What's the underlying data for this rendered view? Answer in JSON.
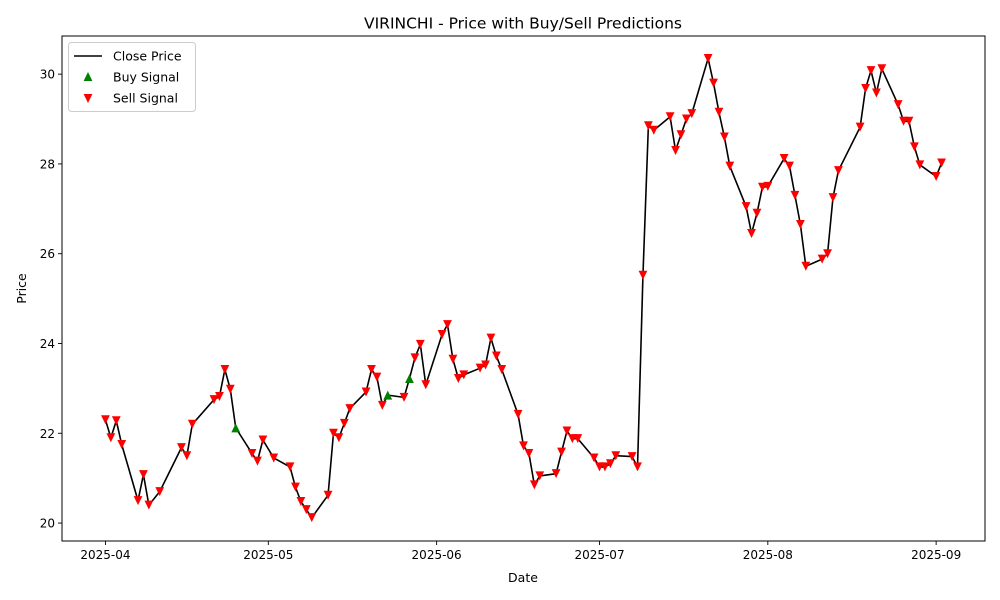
{
  "chart_data": {
    "type": "line",
    "title": "VIRINCHI - Price with Buy/Sell Predictions",
    "xlabel": "Date",
    "ylabel": "Price",
    "xlim": [
      "2025-03-24",
      "2025-09-10"
    ],
    "ylim": [
      19.6,
      30.85
    ],
    "x_ticks": [
      "2025-04",
      "2025-05",
      "2025-06",
      "2025-07",
      "2025-08",
      "2025-09"
    ],
    "x_tick_dates": [
      "2025-04-01",
      "2025-05-01",
      "2025-06-01",
      "2025-07-01",
      "2025-08-01",
      "2025-09-01"
    ],
    "y_ticks": [
      20,
      22,
      24,
      26,
      28,
      30
    ],
    "grid": false,
    "legend_placement": "upper-left",
    "legend": [
      "Close Price",
      "Buy Signal",
      "Sell Signal"
    ],
    "colors": {
      "line": "#000000",
      "buy": "#008000",
      "sell": "#ff0000"
    },
    "series": [
      {
        "name": "Close Price",
        "points": [
          [
            "2025-04-01",
            22.3
          ],
          [
            "2025-04-02",
            21.9
          ],
          [
            "2025-04-03",
            22.28
          ],
          [
            "2025-04-04",
            21.75
          ],
          [
            "2025-04-07",
            20.5
          ],
          [
            "2025-04-08",
            21.08
          ],
          [
            "2025-04-09",
            20.4
          ],
          [
            "2025-04-11",
            20.7
          ],
          [
            "2025-04-15",
            21.68
          ],
          [
            "2025-04-16",
            21.5
          ],
          [
            "2025-04-17",
            22.2
          ],
          [
            "2025-04-21",
            22.75
          ],
          [
            "2025-04-22",
            22.82
          ],
          [
            "2025-04-23",
            23.42
          ],
          [
            "2025-04-24",
            22.98
          ],
          [
            "2025-04-25",
            22.12
          ],
          [
            "2025-04-28",
            21.55
          ],
          [
            "2025-04-29",
            21.38
          ],
          [
            "2025-04-30",
            21.85
          ],
          [
            "2025-05-02",
            21.45
          ],
          [
            "2025-05-05",
            21.25
          ],
          [
            "2025-05-06",
            20.8
          ],
          [
            "2025-05-07",
            20.48
          ],
          [
            "2025-05-08",
            20.3
          ],
          [
            "2025-05-09",
            20.12
          ],
          [
            "2025-05-12",
            20.62
          ],
          [
            "2025-05-13",
            22.0
          ],
          [
            "2025-05-14",
            21.9
          ],
          [
            "2025-05-15",
            22.22
          ],
          [
            "2025-05-16",
            22.55
          ],
          [
            "2025-05-19",
            22.92
          ],
          [
            "2025-05-20",
            23.42
          ],
          [
            "2025-05-21",
            23.25
          ],
          [
            "2025-05-22",
            22.62
          ],
          [
            "2025-05-23",
            22.85
          ],
          [
            "2025-05-26",
            22.8
          ],
          [
            "2025-05-27",
            23.22
          ],
          [
            "2025-05-28",
            23.68
          ],
          [
            "2025-05-29",
            23.98
          ],
          [
            "2025-05-30",
            23.08
          ],
          [
            "2025-06-02",
            24.2
          ],
          [
            "2025-06-03",
            24.42
          ],
          [
            "2025-06-04",
            23.65
          ],
          [
            "2025-06-05",
            23.22
          ],
          [
            "2025-06-06",
            23.3
          ],
          [
            "2025-06-09",
            23.45
          ],
          [
            "2025-06-10",
            23.52
          ],
          [
            "2025-06-11",
            24.12
          ],
          [
            "2025-06-12",
            23.72
          ],
          [
            "2025-06-13",
            23.42
          ],
          [
            "2025-06-16",
            22.42
          ],
          [
            "2025-06-17",
            21.72
          ],
          [
            "2025-06-18",
            21.55
          ],
          [
            "2025-06-19",
            20.85
          ],
          [
            "2025-06-20",
            21.05
          ],
          [
            "2025-06-23",
            21.1
          ],
          [
            "2025-06-24",
            21.58
          ],
          [
            "2025-06-25",
            22.05
          ],
          [
            "2025-06-26",
            21.88
          ],
          [
            "2025-06-27",
            21.88
          ],
          [
            "2025-06-30",
            21.45
          ],
          [
            "2025-07-01",
            21.25
          ],
          [
            "2025-07-02",
            21.25
          ],
          [
            "2025-07-03",
            21.32
          ],
          [
            "2025-07-04",
            21.5
          ],
          [
            "2025-07-07",
            21.48
          ],
          [
            "2025-07-08",
            21.25
          ],
          [
            "2025-07-09",
            25.52
          ],
          [
            "2025-07-10",
            28.85
          ],
          [
            "2025-07-11",
            28.75
          ],
          [
            "2025-07-14",
            29.05
          ],
          [
            "2025-07-15",
            28.3
          ],
          [
            "2025-07-16",
            28.65
          ],
          [
            "2025-07-17",
            29.0
          ],
          [
            "2025-07-18",
            29.12
          ],
          [
            "2025-07-21",
            30.35
          ],
          [
            "2025-07-22",
            29.8
          ],
          [
            "2025-07-23",
            29.15
          ],
          [
            "2025-07-24",
            28.6
          ],
          [
            "2025-07-25",
            27.95
          ],
          [
            "2025-07-28",
            27.05
          ],
          [
            "2025-07-29",
            26.45
          ],
          [
            "2025-07-30",
            26.9
          ],
          [
            "2025-07-31",
            27.48
          ],
          [
            "2025-08-01",
            27.5
          ],
          [
            "2025-08-04",
            28.12
          ],
          [
            "2025-08-05",
            27.95
          ],
          [
            "2025-08-06",
            27.3
          ],
          [
            "2025-08-07",
            26.65
          ],
          [
            "2025-08-08",
            25.72
          ],
          [
            "2025-08-11",
            25.88
          ],
          [
            "2025-08-12",
            26.0
          ],
          [
            "2025-08-13",
            27.25
          ],
          [
            "2025-08-14",
            27.85
          ],
          [
            "2025-08-18",
            28.82
          ],
          [
            "2025-08-19",
            29.68
          ],
          [
            "2025-08-20",
            30.08
          ],
          [
            "2025-08-21",
            29.58
          ],
          [
            "2025-08-22",
            30.12
          ],
          [
            "2025-08-25",
            29.32
          ],
          [
            "2025-08-26",
            28.95
          ],
          [
            "2025-08-27",
            28.95
          ],
          [
            "2025-08-28",
            28.38
          ],
          [
            "2025-08-29",
            27.98
          ],
          [
            "2025-09-01",
            27.72
          ],
          [
            "2025-09-02",
            28.02
          ]
        ]
      },
      {
        "name": "Buy Signal",
        "marker": "triangle-up",
        "points": [
          [
            "2025-04-25",
            22.12
          ],
          [
            "2025-05-23",
            22.85
          ],
          [
            "2025-05-27",
            23.22
          ]
        ]
      },
      {
        "name": "Sell Signal",
        "marker": "triangle-down",
        "points": [
          [
            "2025-04-01",
            22.3
          ],
          [
            "2025-04-02",
            21.9
          ],
          [
            "2025-04-03",
            22.28
          ],
          [
            "2025-04-04",
            21.75
          ],
          [
            "2025-04-07",
            20.5
          ],
          [
            "2025-04-08",
            21.08
          ],
          [
            "2025-04-09",
            20.4
          ],
          [
            "2025-04-11",
            20.7
          ],
          [
            "2025-04-15",
            21.68
          ],
          [
            "2025-04-16",
            21.5
          ],
          [
            "2025-04-17",
            22.2
          ],
          [
            "2025-04-21",
            22.75
          ],
          [
            "2025-04-22",
            22.82
          ],
          [
            "2025-04-23",
            23.42
          ],
          [
            "2025-04-24",
            22.98
          ],
          [
            "2025-04-28",
            21.55
          ],
          [
            "2025-04-29",
            21.38
          ],
          [
            "2025-04-30",
            21.85
          ],
          [
            "2025-05-02",
            21.45
          ],
          [
            "2025-05-05",
            21.25
          ],
          [
            "2025-05-06",
            20.8
          ],
          [
            "2025-05-07",
            20.48
          ],
          [
            "2025-05-08",
            20.3
          ],
          [
            "2025-05-09",
            20.12
          ],
          [
            "2025-05-12",
            20.62
          ],
          [
            "2025-05-13",
            22.0
          ],
          [
            "2025-05-14",
            21.9
          ],
          [
            "2025-05-15",
            22.22
          ],
          [
            "2025-05-16",
            22.55
          ],
          [
            "2025-05-19",
            22.92
          ],
          [
            "2025-05-20",
            23.42
          ],
          [
            "2025-05-21",
            23.25
          ],
          [
            "2025-05-22",
            22.62
          ],
          [
            "2025-05-26",
            22.8
          ],
          [
            "2025-05-28",
            23.68
          ],
          [
            "2025-05-29",
            23.98
          ],
          [
            "2025-05-30",
            23.08
          ],
          [
            "2025-06-02",
            24.2
          ],
          [
            "2025-06-03",
            24.42
          ],
          [
            "2025-06-04",
            23.65
          ],
          [
            "2025-06-05",
            23.22
          ],
          [
            "2025-06-06",
            23.3
          ],
          [
            "2025-06-09",
            23.45
          ],
          [
            "2025-06-10",
            23.52
          ],
          [
            "2025-06-11",
            24.12
          ],
          [
            "2025-06-12",
            23.72
          ],
          [
            "2025-06-13",
            23.42
          ],
          [
            "2025-06-16",
            22.42
          ],
          [
            "2025-06-17",
            21.72
          ],
          [
            "2025-06-18",
            21.55
          ],
          [
            "2025-06-19",
            20.85
          ],
          [
            "2025-06-20",
            21.05
          ],
          [
            "2025-06-23",
            21.1
          ],
          [
            "2025-06-24",
            21.58
          ],
          [
            "2025-06-25",
            22.05
          ],
          [
            "2025-06-26",
            21.88
          ],
          [
            "2025-06-27",
            21.88
          ],
          [
            "2025-06-30",
            21.45
          ],
          [
            "2025-07-01",
            21.25
          ],
          [
            "2025-07-02",
            21.25
          ],
          [
            "2025-07-03",
            21.32
          ],
          [
            "2025-07-04",
            21.5
          ],
          [
            "2025-07-07",
            21.48
          ],
          [
            "2025-07-08",
            21.25
          ],
          [
            "2025-07-09",
            25.52
          ],
          [
            "2025-07-10",
            28.85
          ],
          [
            "2025-07-11",
            28.75
          ],
          [
            "2025-07-14",
            29.05
          ],
          [
            "2025-07-15",
            28.3
          ],
          [
            "2025-07-16",
            28.65
          ],
          [
            "2025-07-17",
            29.0
          ],
          [
            "2025-07-18",
            29.12
          ],
          [
            "2025-07-21",
            30.35
          ],
          [
            "2025-07-22",
            29.8
          ],
          [
            "2025-07-23",
            29.15
          ],
          [
            "2025-07-24",
            28.6
          ],
          [
            "2025-07-25",
            27.95
          ],
          [
            "2025-07-28",
            27.05
          ],
          [
            "2025-07-29",
            26.45
          ],
          [
            "2025-07-30",
            26.9
          ],
          [
            "2025-07-31",
            27.48
          ],
          [
            "2025-08-01",
            27.5
          ],
          [
            "2025-08-04",
            28.12
          ],
          [
            "2025-08-05",
            27.95
          ],
          [
            "2025-08-06",
            27.3
          ],
          [
            "2025-08-07",
            26.65
          ],
          [
            "2025-08-08",
            25.72
          ],
          [
            "2025-08-11",
            25.88
          ],
          [
            "2025-08-12",
            26.0
          ],
          [
            "2025-08-13",
            27.25
          ],
          [
            "2025-08-14",
            27.85
          ],
          [
            "2025-08-18",
            28.82
          ],
          [
            "2025-08-19",
            29.68
          ],
          [
            "2025-08-20",
            30.08
          ],
          [
            "2025-08-21",
            29.58
          ],
          [
            "2025-08-22",
            30.12
          ],
          [
            "2025-08-25",
            29.32
          ],
          [
            "2025-08-26",
            28.95
          ],
          [
            "2025-08-27",
            28.95
          ],
          [
            "2025-08-28",
            28.38
          ],
          [
            "2025-08-29",
            27.98
          ],
          [
            "2025-09-01",
            27.72
          ],
          [
            "2025-09-02",
            28.02
          ]
        ]
      }
    ]
  }
}
